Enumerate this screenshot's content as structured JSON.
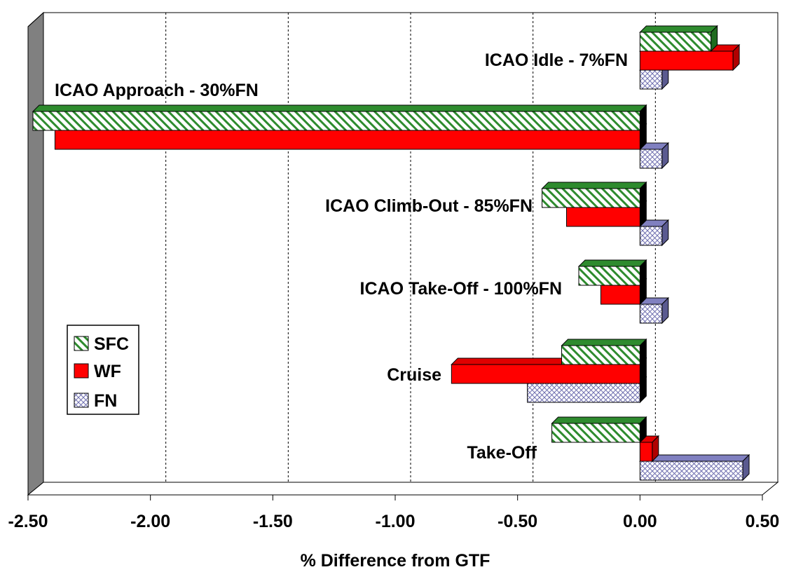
{
  "chart_data": {
    "type": "bar",
    "orientation": "horizontal",
    "style": "3d",
    "title": "",
    "xlabel": "% Difference from GTF",
    "ylabel": "",
    "xlim": [
      -2.5,
      0.5
    ],
    "x_ticks": [
      "-2.50",
      "-2.00",
      "-1.50",
      "-1.00",
      "-0.50",
      "0.00",
      "0.50"
    ],
    "grid": "vertical dashed",
    "legend_position": "left-bottom",
    "categories": [
      "ICAO Idle - 7%FN",
      "ICAO Approach - 30%FN",
      "ICAO Climb-Out - 85%FN",
      "ICAO Take-Off - 100%FN",
      "Cruise",
      "Take-Off"
    ],
    "series": [
      {
        "name": "SFC",
        "color": "#2e8b2e",
        "pattern": "diagonal-hatch",
        "values": [
          0.29,
          -2.48,
          -0.4,
          -0.25,
          -0.32,
          -0.36
        ]
      },
      {
        "name": "WF",
        "color": "#ff0000",
        "pattern": "solid",
        "values": [
          0.38,
          -2.39,
          -0.3,
          -0.16,
          -0.77,
          0.05
        ]
      },
      {
        "name": "FN",
        "color": "#8080c0",
        "pattern": "crosshatch",
        "values": [
          0.09,
          0.09,
          0.09,
          0.09,
          -0.46,
          0.42
        ]
      }
    ]
  }
}
